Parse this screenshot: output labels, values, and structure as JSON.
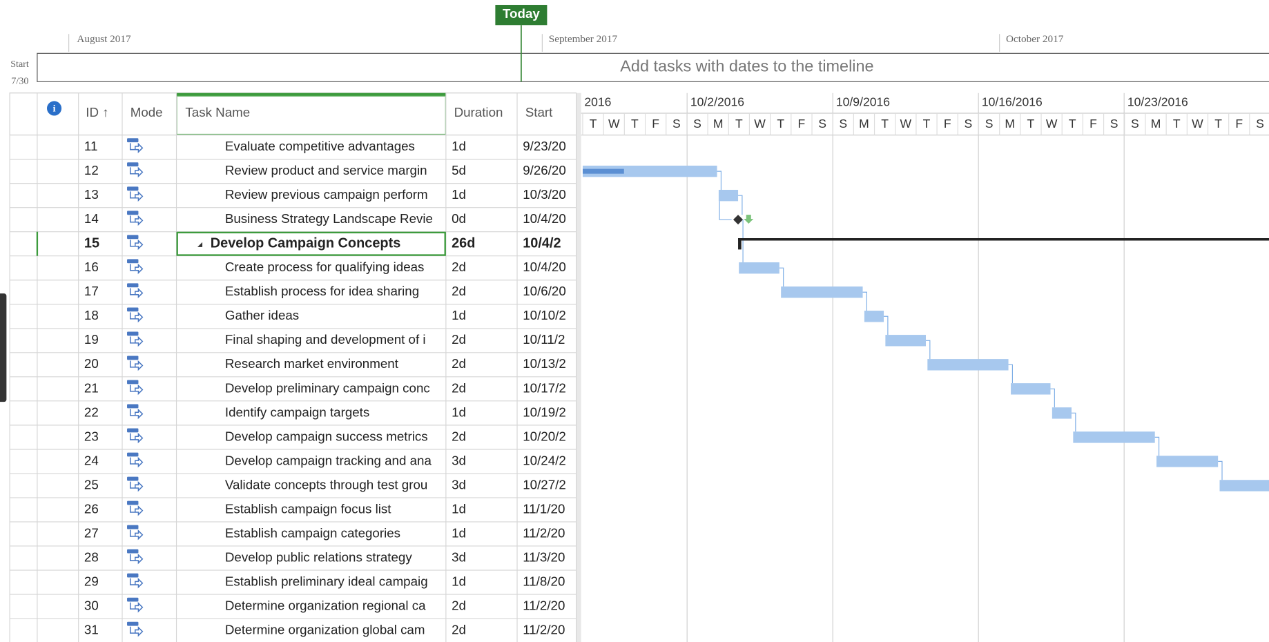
{
  "timeline": {
    "today": "Today",
    "months": [
      "August 2017",
      "September 2017",
      "October 2017"
    ],
    "start_label": "Start",
    "start_date": "7/30",
    "placeholder": "Add tasks with dates to the timeline"
  },
  "table": {
    "headers": {
      "id": "ID ↑",
      "mode": "Mode",
      "task_name": "Task Name",
      "duration": "Duration",
      "start": "Start"
    },
    "rows": [
      {
        "id": 11,
        "name": "Evaluate competitive advantages",
        "duration": "1d",
        "start": "9/23/20"
      },
      {
        "id": 12,
        "name": "Review product and service margin",
        "duration": "5d",
        "start": "9/26/20"
      },
      {
        "id": 13,
        "name": "Review previous campaign perform",
        "duration": "1d",
        "start": "10/3/20"
      },
      {
        "id": 14,
        "name": "Business Strategy Landscape Revie",
        "duration": "0d",
        "start": "10/4/20"
      },
      {
        "id": 15,
        "name": "Develop Campaign Concepts",
        "duration": "26d",
        "start": "10/4/2"
      },
      {
        "id": 16,
        "name": "Create process for qualifying ideas",
        "duration": "2d",
        "start": "10/4/20"
      },
      {
        "id": 17,
        "name": "Establish process for idea sharing",
        "duration": "2d",
        "start": "10/6/20"
      },
      {
        "id": 18,
        "name": "Gather ideas",
        "duration": "1d",
        "start": "10/10/2"
      },
      {
        "id": 19,
        "name": "Final shaping and development of i",
        "duration": "2d",
        "start": "10/11/2"
      },
      {
        "id": 20,
        "name": "Research market environment",
        "duration": "2d",
        "start": "10/13/2"
      },
      {
        "id": 21,
        "name": "Develop preliminary campaign conc",
        "duration": "2d",
        "start": "10/17/2"
      },
      {
        "id": 22,
        "name": "Identify campaign targets",
        "duration": "1d",
        "start": "10/19/2"
      },
      {
        "id": 23,
        "name": "Develop campaign success metrics",
        "duration": "2d",
        "start": "10/20/2"
      },
      {
        "id": 24,
        "name": "Develop campaign tracking and ana",
        "duration": "3d",
        "start": "10/24/2"
      },
      {
        "id": 25,
        "name": "Validate concepts through test grou",
        "duration": "3d",
        "start": "10/27/2"
      },
      {
        "id": 26,
        "name": "Establish campaign focus list",
        "duration": "1d",
        "start": "11/1/20"
      },
      {
        "id": 27,
        "name": "Establish campaign categories",
        "duration": "1d",
        "start": "11/2/20"
      },
      {
        "id": 28,
        "name": "Develop public relations strategy",
        "duration": "3d",
        "start": "11/3/20"
      },
      {
        "id": 29,
        "name": "Establish preliminary ideal campaig",
        "duration": "1d",
        "start": "11/8/20"
      },
      {
        "id": 30,
        "name": "Determine organization regional ca",
        "duration": "2d",
        "start": "11/2/20"
      },
      {
        "id": 31,
        "name": "Determine organization global cam",
        "duration": "2d",
        "start": "11/2/20"
      }
    ]
  },
  "gantt": {
    "weeks": [
      "2016",
      "10/2/2016",
      "10/9/2016",
      "10/16/2016",
      "10/23/2016"
    ],
    "days": [
      "T",
      "W",
      "T",
      "F",
      "S",
      "S",
      "M",
      "T",
      "W",
      "T",
      "F",
      "S",
      "S",
      "M",
      "T",
      "W",
      "T",
      "F",
      "S",
      "S",
      "M",
      "T",
      "W",
      "T",
      "F",
      "S",
      "S",
      "M",
      "T",
      "W",
      "T",
      "F",
      "S"
    ]
  }
}
